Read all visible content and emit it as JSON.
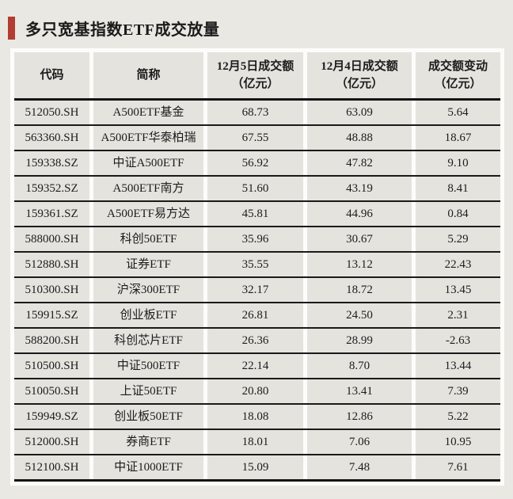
{
  "page": {
    "background_color": "#eae8e3",
    "accent_color": "#b23b32",
    "line_color": "#1a1a1a"
  },
  "header": {
    "title": "多只宽基指数ETF成交放量"
  },
  "table": {
    "columns": [
      {
        "key": "code",
        "label": "代码"
      },
      {
        "key": "name",
        "label": "简称"
      },
      {
        "key": "vol_dec5",
        "label": "12月5日成交额\n（亿元）"
      },
      {
        "key": "vol_dec4",
        "label": "12月4日成交额\n（亿元）"
      },
      {
        "key": "change",
        "label": "成交额变动\n（亿元）"
      }
    ],
    "rows": [
      {
        "code": "512050.SH",
        "name": "A500ETF基金",
        "vol_dec5": "68.73",
        "vol_dec4": "63.09",
        "change": "5.64"
      },
      {
        "code": "563360.SH",
        "name": "A500ETF华泰柏瑞",
        "vol_dec5": "67.55",
        "vol_dec4": "48.88",
        "change": "18.67"
      },
      {
        "code": "159338.SZ",
        "name": "中证A500ETF",
        "vol_dec5": "56.92",
        "vol_dec4": "47.82",
        "change": "9.10"
      },
      {
        "code": "159352.SZ",
        "name": "A500ETF南方",
        "vol_dec5": "51.60",
        "vol_dec4": "43.19",
        "change": "8.41"
      },
      {
        "code": "159361.SZ",
        "name": "A500ETF易方达",
        "vol_dec5": "45.81",
        "vol_dec4": "44.96",
        "change": "0.84"
      },
      {
        "code": "588000.SH",
        "name": "科创50ETF",
        "vol_dec5": "35.96",
        "vol_dec4": "30.67",
        "change": "5.29"
      },
      {
        "code": "512880.SH",
        "name": "证券ETF",
        "vol_dec5": "35.55",
        "vol_dec4": "13.12",
        "change": "22.43"
      },
      {
        "code": "510300.SH",
        "name": "沪深300ETF",
        "vol_dec5": "32.17",
        "vol_dec4": "18.72",
        "change": "13.45"
      },
      {
        "code": "159915.SZ",
        "name": "创业板ETF",
        "vol_dec5": "26.81",
        "vol_dec4": "24.50",
        "change": "2.31"
      },
      {
        "code": "588200.SH",
        "name": "科创芯片ETF",
        "vol_dec5": "26.36",
        "vol_dec4": "28.99",
        "change": "-2.63"
      },
      {
        "code": "510500.SH",
        "name": "中证500ETF",
        "vol_dec5": "22.14",
        "vol_dec4": "8.70",
        "change": "13.44"
      },
      {
        "code": "510050.SH",
        "name": "上证50ETF",
        "vol_dec5": "20.80",
        "vol_dec4": "13.41",
        "change": "7.39"
      },
      {
        "code": "159949.SZ",
        "name": "创业板50ETF",
        "vol_dec5": "18.08",
        "vol_dec4": "12.86",
        "change": "5.22"
      },
      {
        "code": "512000.SH",
        "name": "券商ETF",
        "vol_dec5": "18.01",
        "vol_dec4": "7.06",
        "change": "10.95"
      },
      {
        "code": "512100.SH",
        "name": "中证1000ETF",
        "vol_dec5": "15.09",
        "vol_dec4": "7.48",
        "change": "7.61"
      }
    ]
  }
}
